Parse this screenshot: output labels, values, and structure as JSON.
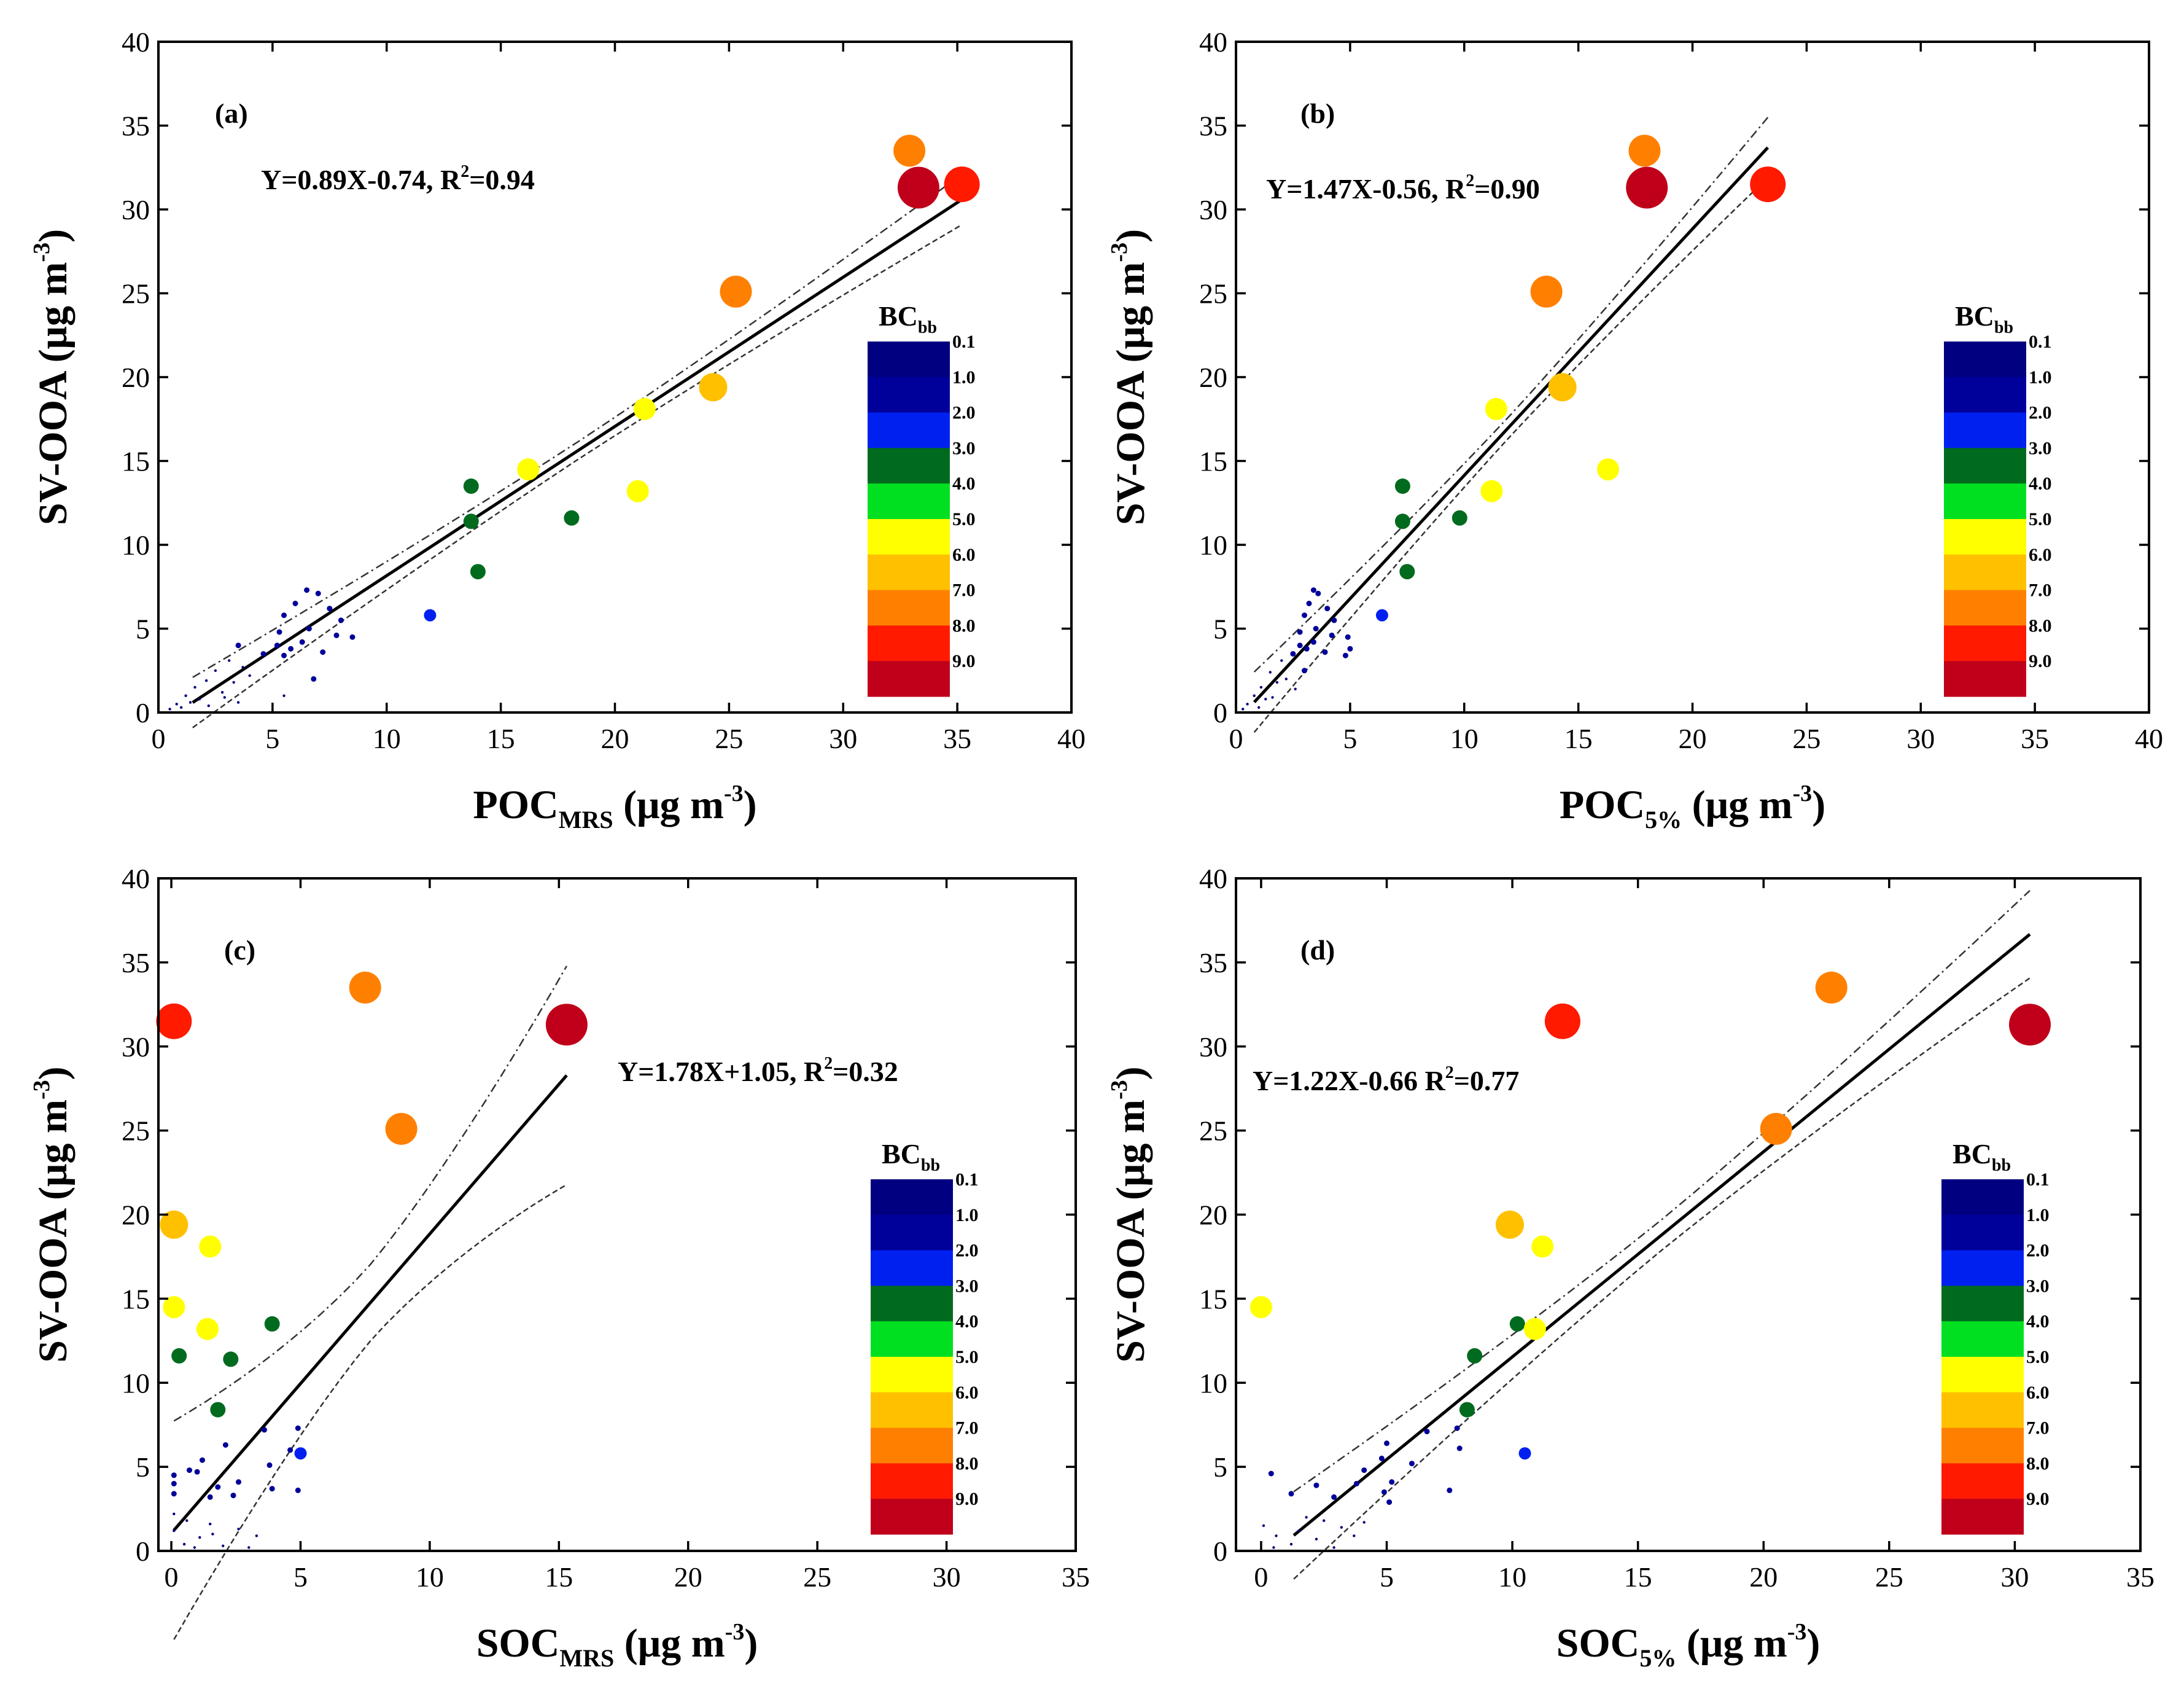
{
  "figure": {
    "colorbar": {
      "title": "BC",
      "title_sub": "bb",
      "labels": [
        "0.1",
        "1.0",
        "2.0",
        "3.0",
        "4.0",
        "5.0",
        "6.0",
        "7.0",
        "8.0",
        "9.0"
      ],
      "colors": [
        "#000080",
        "#00009a",
        "#0020f0",
        "#006b1e",
        "#00e020",
        "#ffff00",
        "#ffc000",
        "#ff8000",
        "#ff1a00",
        "#c0001a"
      ]
    },
    "chart_data": [
      {
        "type": "scatter",
        "panel_label": "(a)",
        "equation": "Y=0.89X-0.74, R",
        "equation_sup": "2",
        "equation_end": "=0.94",
        "xlabel_main": "POC",
        "xlabel_sub": "MRS",
        "xlabel_unit": " (μg m",
        "xlabel_sup": "-3",
        "xlabel_end": ")",
        "ylabel_main": "SV-OOA (μg m",
        "ylabel_sup": "-3",
        "ylabel_end": ")",
        "xlim": [
          0,
          40
        ],
        "ylim": [
          0,
          40
        ],
        "xticks": [
          "0",
          "5",
          "10",
          "15",
          "20",
          "25",
          "30",
          "35",
          "40"
        ],
        "yticks": [
          "0",
          "5",
          "10",
          "15",
          "20",
          "25",
          "30",
          "35",
          "40"
        ],
        "fit": {
          "slope": 0.89,
          "intercept": -0.74,
          "x_range": [
            1.5,
            35.2
          ],
          "band": 1.5
        },
        "points": [
          [
            32.9,
            33.5,
            7.0
          ],
          [
            33.3,
            31.3,
            9.0
          ],
          [
            35.2,
            31.5,
            8.0
          ],
          [
            25.3,
            25.1,
            7.0
          ],
          [
            24.3,
            19.4,
            6.0
          ],
          [
            21.3,
            18.1,
            5.0
          ],
          [
            16.2,
            14.5,
            5.0
          ],
          [
            21.0,
            13.2,
            5.0
          ],
          [
            13.7,
            13.5,
            3.0
          ],
          [
            13.7,
            11.4,
            3.0
          ],
          [
            18.1,
            11.6,
            3.0
          ],
          [
            14.0,
            8.4,
            3.0
          ],
          [
            11.9,
            5.8,
            2.0
          ],
          [
            6.5,
            7.3,
            1.0
          ],
          [
            7.0,
            7.1,
            1.0
          ],
          [
            6.0,
            6.5,
            1.0
          ],
          [
            7.5,
            6.2,
            1.0
          ],
          [
            5.5,
            5.8,
            1.0
          ],
          [
            8.0,
            5.5,
            1.0
          ],
          [
            6.6,
            5.0,
            1.0
          ],
          [
            5.3,
            4.8,
            1.0
          ],
          [
            7.8,
            4.6,
            1.0
          ],
          [
            8.5,
            4.5,
            1.0
          ],
          [
            6.3,
            4.2,
            1.0
          ],
          [
            5.2,
            4.0,
            1.0
          ],
          [
            5.8,
            3.8,
            1.0
          ],
          [
            7.2,
            3.6,
            1.0
          ],
          [
            5.5,
            3.4,
            1.0
          ],
          [
            6.8,
            2.0,
            1.0
          ],
          [
            3.5,
            4.0,
            1.0
          ],
          [
            4.6,
            3.5,
            1.0
          ],
          [
            3.1,
            3.1,
            0.1
          ],
          [
            2.5,
            2.5,
            0.1
          ],
          [
            3.7,
            2.7,
            0.1
          ],
          [
            2.1,
            1.9,
            0.1
          ],
          [
            1.6,
            1.5,
            0.1
          ],
          [
            1.2,
            1.0,
            0.1
          ],
          [
            0.8,
            0.5,
            0.1
          ],
          [
            2.8,
            1.2,
            0.1
          ],
          [
            3.3,
            1.8,
            0.1
          ],
          [
            1.0,
            0.3,
            0.1
          ],
          [
            0.5,
            0.2,
            0.1
          ],
          [
            1.8,
            0.8,
            0.1
          ],
          [
            2.2,
            0.4,
            0.1
          ],
          [
            4.0,
            2.2,
            0.1
          ],
          [
            2.9,
            0.9,
            0.1
          ],
          [
            1.4,
            0.6,
            0.1
          ],
          [
            5.5,
            1.0,
            0.1
          ],
          [
            3.5,
            0.6,
            0.1
          ]
        ]
      },
      {
        "type": "scatter",
        "panel_label": "(b)",
        "equation": "Y=1.47X-0.56, R",
        "equation_sup": "2",
        "equation_end": "=0.90",
        "xlabel_main": "POC",
        "xlabel_sub": "5%",
        "xlabel_unit": " (μg m",
        "xlabel_sup": "-3",
        "xlabel_end": ")",
        "ylabel_main": "SV-OOA (μg m",
        "ylabel_sup": "-3",
        "ylabel_end": ")",
        "xlim": [
          0,
          40
        ],
        "ylim": [
          0,
          40
        ],
        "xticks": [
          "0",
          "5",
          "10",
          "15",
          "20",
          "25",
          "30",
          "35",
          "40"
        ],
        "yticks": [
          "0",
          "5",
          "10",
          "15",
          "20",
          "25",
          "30",
          "35",
          "40"
        ],
        "fit": {
          "slope": 1.47,
          "intercept": -0.56,
          "x_range": [
            0.8,
            23.3
          ],
          "band": 1.8
        },
        "points": [
          [
            17.9,
            33.5,
            7.0
          ],
          [
            18.0,
            31.3,
            9.0
          ],
          [
            23.3,
            31.5,
            8.0
          ],
          [
            13.6,
            25.1,
            7.0
          ],
          [
            14.3,
            19.4,
            6.0
          ],
          [
            11.4,
            18.1,
            5.0
          ],
          [
            16.3,
            14.5,
            5.0
          ],
          [
            11.2,
            13.2,
            5.0
          ],
          [
            7.3,
            13.5,
            3.0
          ],
          [
            7.3,
            11.4,
            3.0
          ],
          [
            9.8,
            11.6,
            3.0
          ],
          [
            7.5,
            8.4,
            3.0
          ],
          [
            6.4,
            5.8,
            2.0
          ],
          [
            3.4,
            7.3,
            1.0
          ],
          [
            3.6,
            7.1,
            1.0
          ],
          [
            3.2,
            6.5,
            1.0
          ],
          [
            4.0,
            6.2,
            1.0
          ],
          [
            3.0,
            5.8,
            1.0
          ],
          [
            4.3,
            5.5,
            1.0
          ],
          [
            3.5,
            5.0,
            1.0
          ],
          [
            2.8,
            4.8,
            1.0
          ],
          [
            4.2,
            4.6,
            1.0
          ],
          [
            4.9,
            4.5,
            1.0
          ],
          [
            3.4,
            4.2,
            1.0
          ],
          [
            2.8,
            4.0,
            1.0
          ],
          [
            3.1,
            3.8,
            1.0
          ],
          [
            3.9,
            3.6,
            1.0
          ],
          [
            4.8,
            3.4,
            1.0
          ],
          [
            5.0,
            3.8,
            1.0
          ],
          [
            3.0,
            2.5,
            1.0
          ],
          [
            2.5,
            3.5,
            1.0
          ],
          [
            2.0,
            3.1,
            0.1
          ],
          [
            1.5,
            2.4,
            0.1
          ],
          [
            1.8,
            1.8,
            0.1
          ],
          [
            1.1,
            1.5,
            0.1
          ],
          [
            0.8,
            1.0,
            0.1
          ],
          [
            0.5,
            0.5,
            0.1
          ],
          [
            1.3,
            0.8,
            0.1
          ],
          [
            2.2,
            2.0,
            0.1
          ],
          [
            1.0,
            0.3,
            0.1
          ],
          [
            0.3,
            0.2,
            0.1
          ],
          [
            1.6,
            0.9,
            0.1
          ],
          [
            2.6,
            1.4,
            0.1
          ]
        ]
      },
      {
        "type": "scatter",
        "panel_label": "(c)",
        "equation": "Y=1.78X+1.05, R",
        "equation_sup": "2",
        "equation_end": "=0.32",
        "xlabel_main": "SOC",
        "xlabel_sub": "MRS",
        "xlabel_unit": " (μg m",
        "xlabel_sup": "-3",
        "xlabel_end": ")",
        "ylabel_main": "SV-OOA (μg m",
        "ylabel_sup": "-3",
        "ylabel_end": ")",
        "xlim": [
          -0.5,
          35
        ],
        "ylim": [
          0,
          40
        ],
        "xticks": [
          "0",
          "5",
          "10",
          "15",
          "20",
          "25",
          "30",
          "35"
        ],
        "yticks": [
          "0",
          "5",
          "10",
          "15",
          "20",
          "25",
          "30",
          "35",
          "40"
        ],
        "fit": {
          "slope": 1.78,
          "intercept": 1.05,
          "x_range": [
            0.1,
            15.3
          ],
          "band": 6.5
        },
        "points": [
          [
            0.1,
            31.5,
            8.0
          ],
          [
            7.5,
            33.5,
            7.0
          ],
          [
            15.3,
            31.3,
            9.0
          ],
          [
            8.9,
            25.1,
            7.0
          ],
          [
            0.1,
            19.4,
            6.0
          ],
          [
            1.5,
            18.1,
            5.0
          ],
          [
            0.1,
            14.5,
            5.0
          ],
          [
            1.4,
            13.2,
            5.0
          ],
          [
            3.9,
            13.5,
            3.0
          ],
          [
            0.3,
            11.6,
            3.0
          ],
          [
            2.3,
            11.4,
            3.0
          ],
          [
            1.8,
            8.4,
            3.0
          ],
          [
            5.0,
            5.8,
            2.0
          ],
          [
            3.6,
            7.2,
            1.0
          ],
          [
            4.9,
            7.3,
            1.0
          ],
          [
            2.1,
            6.3,
            1.0
          ],
          [
            4.6,
            6.0,
            1.0
          ],
          [
            1.2,
            5.4,
            1.0
          ],
          [
            3.8,
            5.1,
            1.0
          ],
          [
            0.7,
            4.8,
            1.0
          ],
          [
            1.0,
            4.7,
            1.0
          ],
          [
            0.1,
            4.5,
            1.0
          ],
          [
            0.1,
            4.0,
            1.0
          ],
          [
            2.6,
            4.1,
            1.0
          ],
          [
            1.8,
            3.8,
            1.0
          ],
          [
            3.9,
            3.7,
            1.0
          ],
          [
            4.9,
            3.6,
            1.0
          ],
          [
            0.1,
            3.4,
            1.0
          ],
          [
            2.4,
            3.3,
            1.0
          ],
          [
            1.5,
            3.2,
            1.0
          ],
          [
            0.1,
            2.2,
            0.1
          ],
          [
            0.6,
            1.8,
            0.1
          ],
          [
            1.5,
            1.6,
            0.1
          ],
          [
            2.6,
            1.3,
            0.1
          ],
          [
            0.1,
            1.2,
            0.1
          ],
          [
            1.1,
            0.8,
            0.1
          ],
          [
            3.3,
            0.9,
            0.1
          ],
          [
            0.5,
            0.4,
            0.1
          ],
          [
            2.0,
            0.3,
            0.1
          ],
          [
            3.0,
            0.2,
            0.1
          ],
          [
            0.9,
            0.2,
            0.1
          ],
          [
            1.6,
            1.0,
            0.1
          ]
        ]
      },
      {
        "type": "scatter",
        "panel_label": "(d)",
        "equation": "Y=1.22X-0.66 R",
        "equation_sup": "2",
        "equation_end": "=0.77",
        "xlabel_main": "SOC",
        "xlabel_sub": "5%",
        "xlabel_unit": " (μg m",
        "xlabel_sup": "-3",
        "xlabel_end": ")",
        "ylabel_main": "SV-OOA (μg m",
        "ylabel_sup": "-3",
        "ylabel_end": ")",
        "xlim": [
          -1,
          35
        ],
        "ylim": [
          0,
          40
        ],
        "xticks": [
          "0",
          "5",
          "10",
          "15",
          "20",
          "25",
          "30",
          "35"
        ],
        "yticks": [
          "0",
          "5",
          "10",
          "15",
          "20",
          "25",
          "30",
          "35",
          "40"
        ],
        "fit": {
          "slope": 1.22,
          "intercept": -0.66,
          "x_range": [
            1.3,
            30.6
          ],
          "band": 2.6
        },
        "points": [
          [
            12.0,
            31.5,
            8.0
          ],
          [
            22.7,
            33.5,
            7.0
          ],
          [
            30.6,
            31.3,
            9.0
          ],
          [
            20.5,
            25.1,
            7.0
          ],
          [
            9.9,
            19.4,
            6.0
          ],
          [
            11.2,
            18.1,
            5.0
          ],
          [
            0.0,
            14.5,
            5.0
          ],
          [
            10.9,
            13.2,
            5.0
          ],
          [
            10.2,
            13.5,
            3.0
          ],
          [
            8.5,
            11.6,
            3.0
          ],
          [
            8.2,
            8.4,
            3.0
          ],
          [
            10.5,
            5.8,
            2.0
          ],
          [
            5.0,
            6.4,
            1.0
          ],
          [
            6.6,
            7.1,
            1.0
          ],
          [
            7.8,
            7.3,
            1.0
          ],
          [
            6.0,
            5.2,
            1.0
          ],
          [
            4.8,
            5.5,
            1.0
          ],
          [
            4.1,
            4.8,
            1.0
          ],
          [
            3.8,
            4.0,
            1.0
          ],
          [
            5.2,
            4.1,
            1.0
          ],
          [
            2.2,
            3.9,
            1.0
          ],
          [
            0.4,
            4.6,
            1.0
          ],
          [
            1.2,
            3.4,
            1.0
          ],
          [
            4.9,
            3.5,
            1.0
          ],
          [
            7.5,
            3.6,
            1.0
          ],
          [
            7.9,
            6.1,
            1.0
          ],
          [
            5.1,
            2.9,
            1.0
          ],
          [
            2.9,
            3.2,
            1.0
          ],
          [
            0.1,
            1.5,
            0.1
          ],
          [
            0.6,
            0.9,
            0.1
          ],
          [
            1.5,
            1.2,
            0.1
          ],
          [
            2.5,
            1.8,
            0.1
          ],
          [
            3.2,
            1.4,
            0.1
          ],
          [
            1.2,
            0.4,
            0.1
          ],
          [
            2.2,
            0.7,
            0.1
          ],
          [
            0.5,
            0.2,
            0.1
          ],
          [
            3.7,
            0.9,
            0.1
          ],
          [
            4.1,
            1.7,
            0.1
          ],
          [
            1.8,
            2.0,
            0.1
          ],
          [
            2.9,
            0.2,
            0.1
          ]
        ]
      }
    ]
  }
}
